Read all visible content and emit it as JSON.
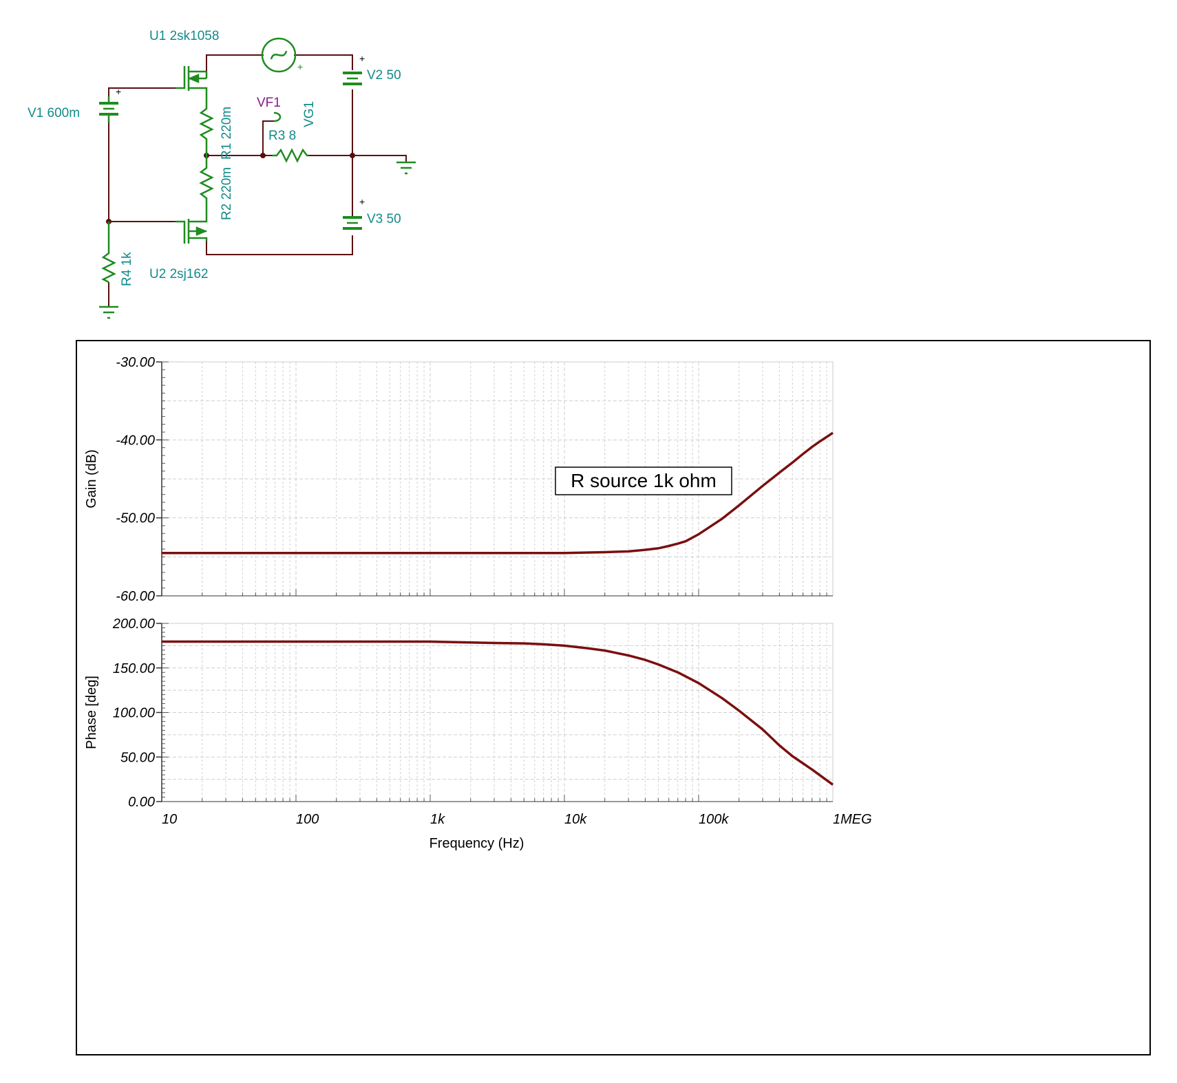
{
  "schematic": {
    "components": [
      {
        "ref": "U1",
        "value": "2sk1058",
        "label": "U1 2sk1058"
      },
      {
        "ref": "U2",
        "value": "2sj162",
        "label": "U2 2sj162"
      },
      {
        "ref": "V1",
        "value": "600m",
        "label": "V1 600m"
      },
      {
        "ref": "V2",
        "value": "50",
        "label": "V2 50"
      },
      {
        "ref": "V3",
        "value": "50",
        "label": "V3 50"
      },
      {
        "ref": "R1",
        "value": "220m",
        "label": "R1 220m"
      },
      {
        "ref": "R2",
        "value": "220m",
        "label": "R2 220m"
      },
      {
        "ref": "R3",
        "value": "8",
        "label": "R3 8"
      },
      {
        "ref": "R4",
        "value": "1k",
        "label": "R4 1k"
      },
      {
        "ref": "VF1",
        "value": "",
        "label": "VF1"
      },
      {
        "ref": "VG1",
        "value": "",
        "label": "VG1"
      }
    ],
    "colors": {
      "wire": "#5a0f0f",
      "component": "#1e8c1e",
      "label": "#138a8a",
      "probe_label": "#8a1a8a"
    }
  },
  "chart_data": [
    {
      "type": "line",
      "x_scale": "log",
      "xlim": [
        10,
        1000000
      ],
      "ylim": [
        -60,
        -30
      ],
      "ylabel": "Gain (dB)",
      "xlabel": "",
      "y_ticks": [
        "-30.00",
        "-40.00",
        "-50.00",
        "-60.00"
      ],
      "grid": true,
      "annotation": "R source 1k ohm",
      "series_color": "#7a0f0f",
      "series": [
        {
          "x": [
            10,
            100,
            1000,
            10000,
            20000,
            30000,
            40000,
            50000,
            60000,
            70000,
            80000,
            100000,
            150000,
            200000,
            300000,
            400000,
            500000,
            600000,
            700000,
            800000,
            1000000
          ],
          "y": [
            -54.5,
            -54.5,
            -54.5,
            -54.5,
            -54.4,
            -54.3,
            -54.1,
            -53.9,
            -53.6,
            -53.3,
            -53.0,
            -52.1,
            -50.1,
            -48.4,
            -45.9,
            -44.2,
            -42.9,
            -41.8,
            -40.9,
            -40.2,
            -39.1
          ]
        }
      ]
    },
    {
      "type": "line",
      "x_scale": "log",
      "xlim": [
        10,
        1000000
      ],
      "ylim": [
        0,
        200
      ],
      "ylabel": "Phase [deg]",
      "xlabel": "Frequency (Hz)",
      "y_ticks": [
        "200.00",
        "150.00",
        "100.00",
        "50.00",
        "0.00"
      ],
      "x_ticks": [
        "10",
        "100",
        "1k",
        "10k",
        "100k",
        "1MEG"
      ],
      "grid": true,
      "series_color": "#7a0f0f",
      "series": [
        {
          "x": [
            10,
            100,
            1000,
            2000,
            3000,
            5000,
            7000,
            10000,
            15000,
            20000,
            30000,
            40000,
            50000,
            70000,
            100000,
            150000,
            200000,
            300000,
            400000,
            500000,
            700000,
            1000000
          ],
          "y": [
            179.5,
            179.5,
            179.5,
            178.5,
            178,
            177.5,
            176.5,
            175,
            172,
            169.5,
            164,
            159,
            154,
            145,
            133,
            116,
            102,
            81,
            63,
            51,
            36,
            19
          ]
        }
      ]
    }
  ]
}
